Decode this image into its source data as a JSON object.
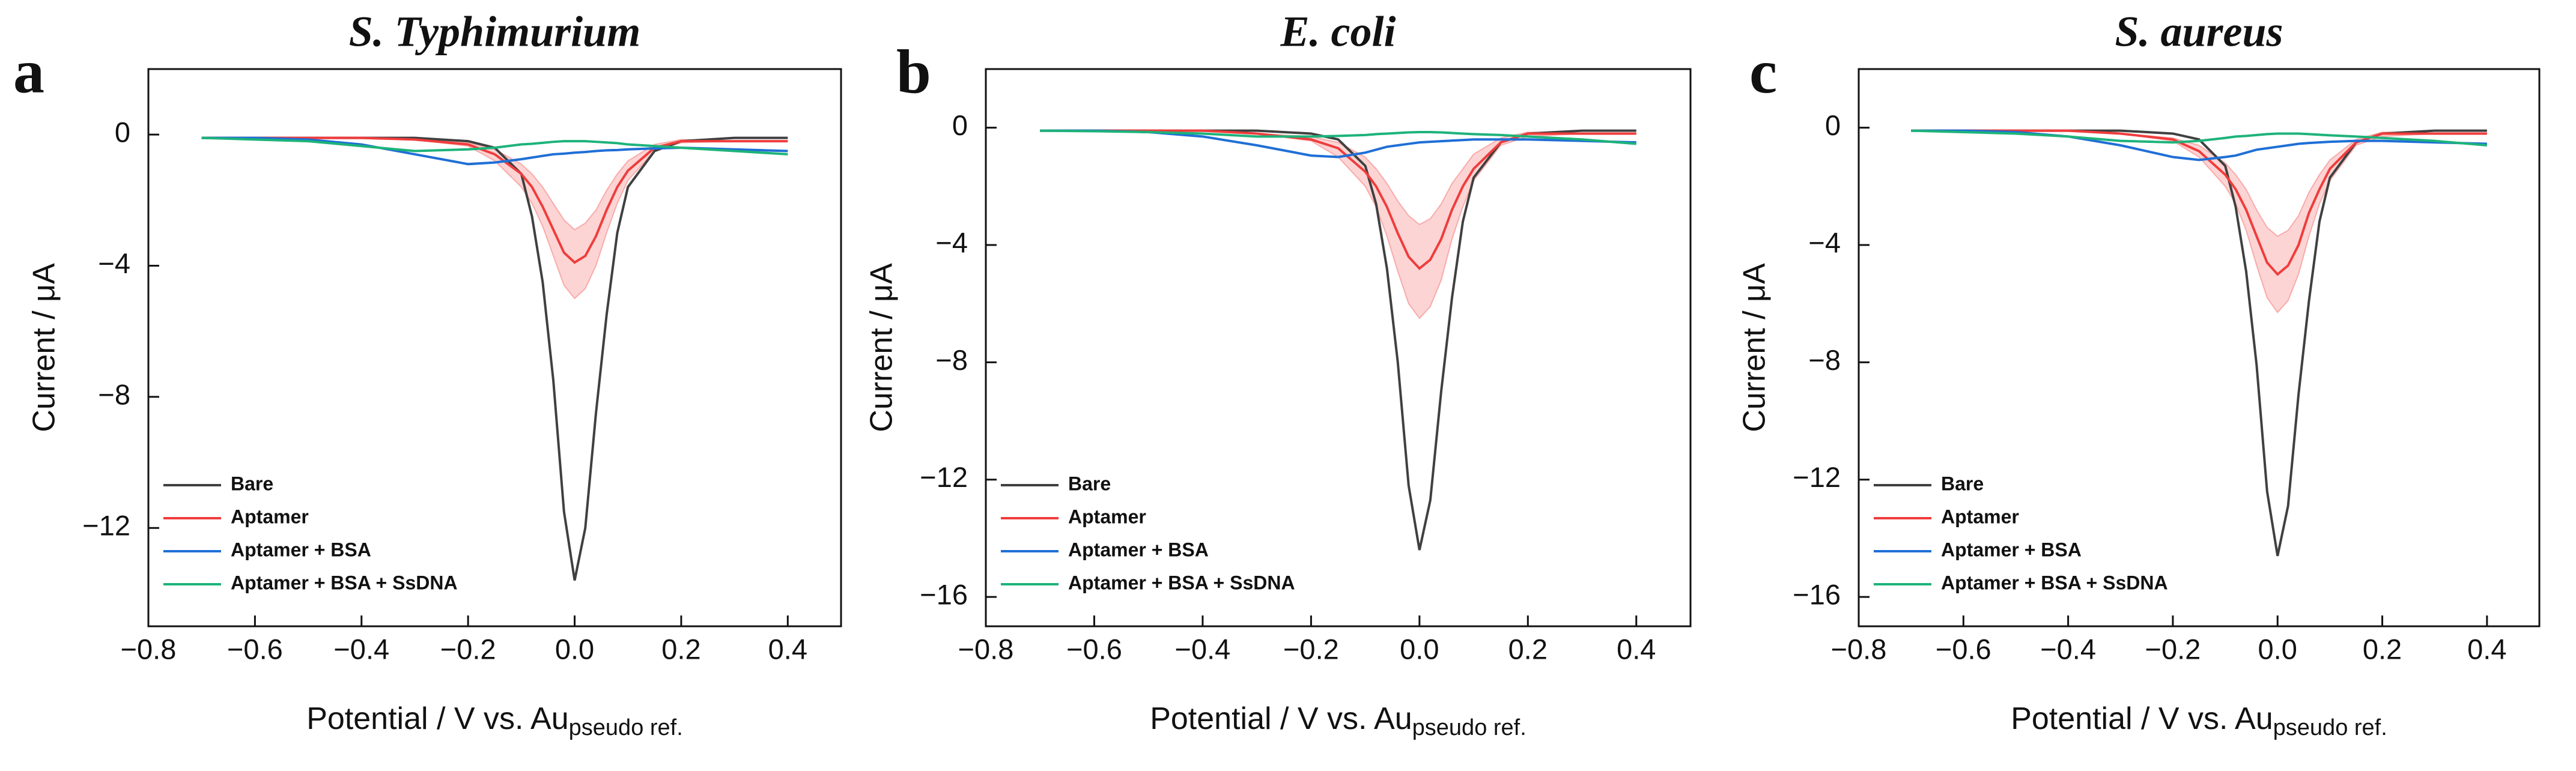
{
  "chart_data": [
    {
      "type": "line",
      "panel_label": "a",
      "title": "S. Typhimurium",
      "xlabel": "Potential / V vs. Au",
      "xlabel_sub": "pseudo ref.",
      "ylabel": "Current / μA",
      "xlim": [
        -0.8,
        0.5
      ],
      "ylim": [
        -15,
        2
      ],
      "xticks": [
        {
          "value": -0.8,
          "label": "−0.8"
        },
        {
          "value": -0.6,
          "label": "−0.6"
        },
        {
          "value": -0.4,
          "label": "−0.4"
        },
        {
          "value": -0.2,
          "label": "−0.2"
        },
        {
          "value": 0,
          "label": "0.0"
        },
        0.2,
        0.4
      ],
      "yticks": [
        {
          "value": -12,
          "label": "−12"
        },
        {
          "value": -8,
          "label": "−8"
        },
        {
          "value": -4,
          "label": "−4"
        },
        0
      ],
      "legend": "lower left",
      "x": [
        -0.7,
        -0.6,
        -0.5,
        -0.4,
        -0.3,
        -0.2,
        -0.15,
        -0.1,
        -0.08,
        -0.06,
        -0.04,
        -0.02,
        0,
        0.02,
        0.04,
        0.06,
        0.08,
        0.1,
        0.15,
        0.2,
        0.3,
        0.4
      ],
      "series": [
        {
          "name": "Bare",
          "color": "#404040",
          "values": [
            -0.1,
            -0.1,
            -0.1,
            -0.1,
            -0.1,
            -0.2,
            -0.4,
            -1.2,
            -2.5,
            -4.5,
            -7.5,
            -11.5,
            -13.6,
            -12,
            -8.5,
            -5.5,
            -3,
            -1.6,
            -0.5,
            -0.2,
            -0.1,
            -0.1
          ]
        },
        {
          "name": "Aptamer",
          "color": "#f03c3c",
          "values": [
            -0.1,
            -0.1,
            -0.1,
            -0.1,
            -0.15,
            -0.3,
            -0.6,
            -1.2,
            -1.6,
            -2.2,
            -2.9,
            -3.6,
            -3.9,
            -3.7,
            -3.1,
            -2.3,
            -1.6,
            -1.1,
            -0.4,
            -0.2,
            -0.2,
            -0.2
          ],
          "band_lower": [
            -0.1,
            -0.1,
            -0.1,
            -0.1,
            -0.15,
            -0.35,
            -0.8,
            -1.6,
            -2.1,
            -2.8,
            -3.7,
            -4.6,
            -5.0,
            -4.7,
            -4.0,
            -3.0,
            -2.1,
            -1.4,
            -0.5,
            -0.25,
            -0.2,
            -0.2
          ],
          "band_upper": [
            -0.1,
            -0.1,
            -0.1,
            -0.1,
            -0.15,
            -0.25,
            -0.45,
            -0.9,
            -1.2,
            -1.6,
            -2.1,
            -2.6,
            -2.9,
            -2.7,
            -2.3,
            -1.7,
            -1.2,
            -0.8,
            -0.3,
            -0.15,
            -0.2,
            -0.2
          ]
        },
        {
          "name": "Aptamer + BSA",
          "color": "#1f6fd6",
          "values": [
            -0.1,
            -0.1,
            -0.15,
            -0.3,
            -0.6,
            -0.9,
            -0.85,
            -0.75,
            -0.7,
            -0.65,
            -0.6,
            -0.58,
            -0.55,
            -0.53,
            -0.5,
            -0.48,
            -0.47,
            -0.45,
            -0.42,
            -0.4,
            -0.45,
            -0.5
          ]
        },
        {
          "name": "Aptamer + BSA + SsDNA",
          "color": "#1db37a",
          "values": [
            -0.1,
            -0.15,
            -0.2,
            -0.35,
            -0.5,
            -0.45,
            -0.4,
            -0.3,
            -0.28,
            -0.25,
            -0.22,
            -0.2,
            -0.2,
            -0.2,
            -0.22,
            -0.24,
            -0.26,
            -0.3,
            -0.35,
            -0.4,
            -0.5,
            -0.6
          ]
        }
      ]
    },
    {
      "type": "line",
      "panel_label": "b",
      "title": "E. coli",
      "xlabel": "Potential / V vs. Au",
      "xlabel_sub": "pseudo ref.",
      "ylabel": "Current / μA",
      "xlim": [
        -0.8,
        0.5
      ],
      "ylim": [
        -17,
        2
      ],
      "xticks": [
        {
          "value": -0.8,
          "label": "−0.8"
        },
        {
          "value": -0.6,
          "label": "−0.6"
        },
        {
          "value": -0.4,
          "label": "−0.4"
        },
        {
          "value": -0.2,
          "label": "−0.2"
        },
        {
          "value": 0,
          "label": "0.0"
        },
        0.2,
        0.4
      ],
      "yticks": [
        {
          "value": -16,
          "label": "−16"
        },
        {
          "value": -12,
          "label": "−12"
        },
        {
          "value": -8,
          "label": "−8"
        },
        {
          "value": -4,
          "label": "−4"
        },
        0
      ],
      "legend": "lower left",
      "x": [
        -0.7,
        -0.6,
        -0.5,
        -0.4,
        -0.3,
        -0.2,
        -0.15,
        -0.1,
        -0.08,
        -0.06,
        -0.04,
        -0.02,
        0,
        0.02,
        0.04,
        0.06,
        0.08,
        0.1,
        0.15,
        0.2,
        0.3,
        0.4
      ],
      "series": [
        {
          "name": "Bare",
          "color": "#404040",
          "values": [
            -0.1,
            -0.1,
            -0.1,
            -0.1,
            -0.1,
            -0.2,
            -0.4,
            -1.3,
            -2.6,
            -4.8,
            -8,
            -12.2,
            -14.4,
            -12.7,
            -9,
            -5.8,
            -3.2,
            -1.7,
            -0.5,
            -0.2,
            -0.1,
            -0.1
          ]
        },
        {
          "name": "Aptamer",
          "color": "#f03c3c",
          "values": [
            -0.1,
            -0.1,
            -0.1,
            -0.1,
            -0.2,
            -0.4,
            -0.7,
            -1.5,
            -2,
            -2.7,
            -3.6,
            -4.4,
            -4.8,
            -4.5,
            -3.8,
            -2.8,
            -2,
            -1.4,
            -0.5,
            -0.2,
            -0.2,
            -0.2
          ],
          "band_lower": [
            -0.1,
            -0.1,
            -0.1,
            -0.1,
            -0.2,
            -0.45,
            -1,
            -2,
            -2.7,
            -3.7,
            -4.9,
            -6,
            -6.5,
            -6.1,
            -5.2,
            -3.8,
            -2.7,
            -1.8,
            -0.6,
            -0.3,
            -0.2,
            -0.2
          ],
          "band_upper": [
            -0.1,
            -0.1,
            -0.1,
            -0.1,
            -0.2,
            -0.3,
            -0.5,
            -1,
            -1.4,
            -1.9,
            -2.5,
            -3,
            -3.3,
            -3.1,
            -2.6,
            -1.9,
            -1.4,
            -0.9,
            -0.35,
            -0.15,
            -0.2,
            -0.2
          ]
        },
        {
          "name": "Aptamer + BSA",
          "color": "#1f6fd6",
          "values": [
            -0.1,
            -0.1,
            -0.15,
            -0.3,
            -0.6,
            -0.95,
            -1.0,
            -0.85,
            -0.75,
            -0.65,
            -0.6,
            -0.55,
            -0.5,
            -0.48,
            -0.46,
            -0.44,
            -0.42,
            -0.4,
            -0.4,
            -0.4,
            -0.45,
            -0.5
          ]
        },
        {
          "name": "Aptamer + BSA + SsDNA",
          "color": "#1db37a",
          "values": [
            -0.1,
            -0.12,
            -0.15,
            -0.2,
            -0.3,
            -0.3,
            -0.28,
            -0.25,
            -0.22,
            -0.2,
            -0.18,
            -0.16,
            -0.15,
            -0.15,
            -0.16,
            -0.18,
            -0.2,
            -0.22,
            -0.25,
            -0.3,
            -0.4,
            -0.55
          ]
        }
      ]
    },
    {
      "type": "line",
      "panel_label": "c",
      "title": "S. aureus",
      "xlabel": "Potential / V vs. Au",
      "xlabel_sub": "pseudo ref.",
      "ylabel": "Current / μA",
      "xlim": [
        -0.8,
        0.5
      ],
      "ylim": [
        -17,
        2
      ],
      "xticks": [
        {
          "value": -0.8,
          "label": "−0.8"
        },
        {
          "value": -0.6,
          "label": "−0.6"
        },
        {
          "value": -0.4,
          "label": "−0.4"
        },
        {
          "value": -0.2,
          "label": "−0.2"
        },
        {
          "value": 0,
          "label": "0.0"
        },
        0.2,
        0.4
      ],
      "yticks": [
        {
          "value": -16,
          "label": "−16"
        },
        {
          "value": -12,
          "label": "−12"
        },
        {
          "value": -8,
          "label": "−8"
        },
        {
          "value": -4,
          "label": "−4"
        },
        0
      ],
      "legend": "lower left",
      "x": [
        -0.7,
        -0.6,
        -0.5,
        -0.4,
        -0.3,
        -0.2,
        -0.15,
        -0.1,
        -0.08,
        -0.06,
        -0.04,
        -0.02,
        0,
        0.02,
        0.04,
        0.06,
        0.08,
        0.1,
        0.15,
        0.2,
        0.3,
        0.4
      ],
      "series": [
        {
          "name": "Bare",
          "color": "#404040",
          "values": [
            -0.1,
            -0.1,
            -0.1,
            -0.1,
            -0.1,
            -0.2,
            -0.4,
            -1.3,
            -2.7,
            -4.9,
            -8.1,
            -12.4,
            -14.6,
            -12.9,
            -9.1,
            -5.9,
            -3.2,
            -1.7,
            -0.5,
            -0.2,
            -0.1,
            -0.1
          ]
        },
        {
          "name": "Aptamer",
          "color": "#f03c3c",
          "values": [
            -0.1,
            -0.1,
            -0.1,
            -0.1,
            -0.2,
            -0.4,
            -0.8,
            -1.6,
            -2.1,
            -2.8,
            -3.7,
            -4.6,
            -5,
            -4.7,
            -4,
            -2.9,
            -2.1,
            -1.4,
            -0.5,
            -0.2,
            -0.2,
            -0.2
          ],
          "band_lower": [
            -0.1,
            -0.1,
            -0.1,
            -0.1,
            -0.2,
            -0.45,
            -1,
            -2,
            -2.6,
            -3.5,
            -4.7,
            -5.8,
            -6.3,
            -5.9,
            -5,
            -3.7,
            -2.6,
            -1.8,
            -0.6,
            -0.3,
            -0.2,
            -0.2
          ],
          "band_upper": [
            -0.1,
            -0.1,
            -0.1,
            -0.1,
            -0.2,
            -0.35,
            -0.6,
            -1.2,
            -1.6,
            -2.1,
            -2.8,
            -3.4,
            -3.7,
            -3.5,
            -3,
            -2.2,
            -1.6,
            -1.1,
            -0.4,
            -0.15,
            -0.2,
            -0.2
          ]
        },
        {
          "name": "Aptamer + BSA",
          "color": "#1f6fd6",
          "values": [
            -0.1,
            -0.1,
            -0.15,
            -0.3,
            -0.6,
            -1.0,
            -1.1,
            -1.0,
            -0.95,
            -0.85,
            -0.75,
            -0.7,
            -0.65,
            -0.6,
            -0.55,
            -0.52,
            -0.5,
            -0.48,
            -0.45,
            -0.45,
            -0.5,
            -0.55
          ]
        },
        {
          "name": "Aptamer + BSA + SsDNA",
          "color": "#1db37a",
          "values": [
            -0.1,
            -0.15,
            -0.2,
            -0.3,
            -0.45,
            -0.5,
            -0.45,
            -0.35,
            -0.3,
            -0.28,
            -0.25,
            -0.22,
            -0.2,
            -0.2,
            -0.2,
            -0.22,
            -0.24,
            -0.26,
            -0.3,
            -0.35,
            -0.45,
            -0.6
          ]
        }
      ]
    }
  ]
}
